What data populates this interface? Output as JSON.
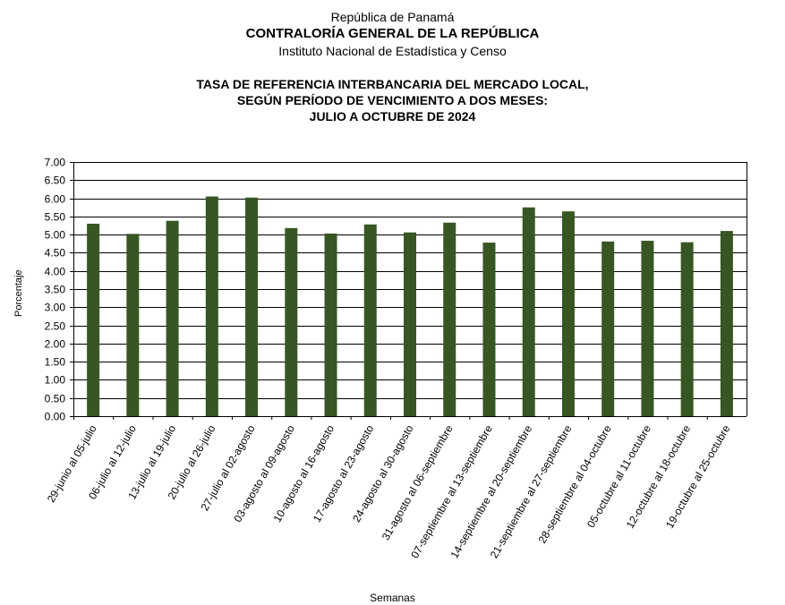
{
  "header": {
    "line1": "República de Panamá",
    "line2": "CONTRALORÍA GENERAL DE LA REPÚBLICA",
    "line3": "Instituto  Nacional de Estadística  y Censo"
  },
  "chart_data": {
    "type": "bar",
    "title_lines": [
      "TASA DE REFERENCIA INTERBANCARIA DEL MERCADO LOCAL,",
      "SEGÚN PERÍODO DE VENCIMIENTO A DOS MESES:",
      "JULIO A OCTUBRE DE 2024"
    ],
    "xlabel": "Semanas",
    "ylabel": "Porcentaje",
    "ylim": [
      0,
      7
    ],
    "ytick_step": 0.5,
    "grid": true,
    "legend": "none",
    "bar_color": "#375623",
    "categories": [
      "29-junio al 05-julio",
      "06-julio al 12-julio",
      "13-julio al 19-julio",
      "20-julio al 26-julio",
      "27-julio al 02-agosto",
      "03-agosto al 09-agosto",
      "10-agosto al 16-agosto",
      "17-agosto al 23-agosto",
      "24-agosto al 30-agosto",
      "31-agosto al 06-septiembre",
      "07-septiembre al 13-septiembre",
      "14-septiembre al 20-septiembre",
      "21-septiembre al 27-septiembre",
      "28-septiembre al 04-octubre",
      "05-octubre al 11-octubre",
      "12-octubre al 18-octubre",
      "19-octubre al 25-octubre"
    ],
    "values": [
      5.3,
      5.02,
      5.38,
      6.05,
      6.02,
      5.18,
      5.03,
      5.28,
      5.06,
      5.33,
      4.78,
      5.75,
      5.64,
      4.81,
      4.83,
      4.79,
      5.1
    ]
  }
}
